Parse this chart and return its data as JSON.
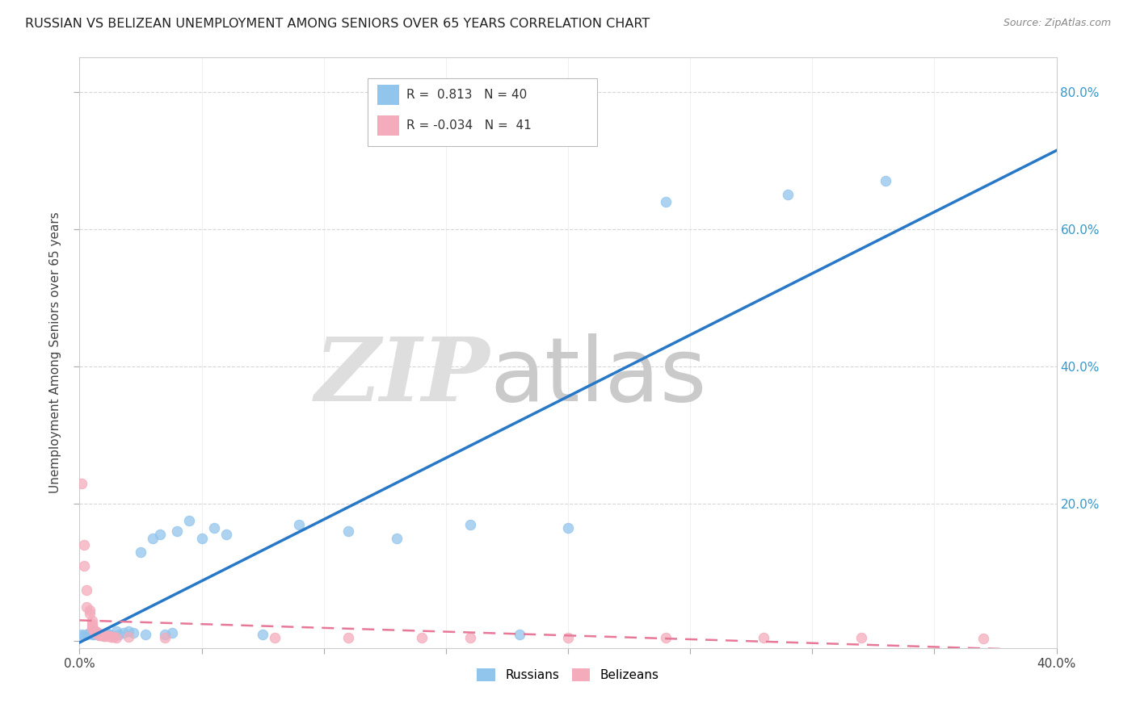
{
  "title": "RUSSIAN VS BELIZEAN UNEMPLOYMENT AMONG SENIORS OVER 65 YEARS CORRELATION CHART",
  "source": "Source: ZipAtlas.com",
  "ylabel": "Unemployment Among Seniors over 65 years",
  "xlim": [
    0.0,
    0.4
  ],
  "ylim": [
    -0.01,
    0.85
  ],
  "yticks": [
    0.0,
    0.2,
    0.4,
    0.6,
    0.8
  ],
  "ytick_labels": [
    "",
    "20.0%",
    "40.0%",
    "60.0%",
    "80.0%"
  ],
  "xticks": [
    0.0,
    0.05,
    0.1,
    0.15,
    0.2,
    0.25,
    0.3,
    0.35,
    0.4
  ],
  "russian_R": "0.813",
  "russian_N": "40",
  "belizean_R": "-0.034",
  "belizean_N": "41",
  "russian_color": "#92C5EC",
  "belizean_color": "#F4ABBB",
  "russian_line_color": "#2878C8",
  "belizean_line_color": "#E87898",
  "russian_x": [
    0.001,
    0.002,
    0.003,
    0.004,
    0.005,
    0.005,
    0.006,
    0.007,
    0.008,
    0.009,
    0.01,
    0.011,
    0.012,
    0.013,
    0.015,
    0.016,
    0.018,
    0.02,
    0.022,
    0.025,
    0.027,
    0.03,
    0.033,
    0.035,
    0.038,
    0.04,
    0.045,
    0.05,
    0.055,
    0.06,
    0.075,
    0.09,
    0.11,
    0.13,
    0.16,
    0.18,
    0.2,
    0.24,
    0.29,
    0.33
  ],
  "russian_y": [
    0.01,
    0.008,
    0.01,
    0.012,
    0.01,
    0.015,
    0.01,
    0.012,
    0.01,
    0.008,
    0.01,
    0.012,
    0.01,
    0.008,
    0.015,
    0.01,
    0.012,
    0.015,
    0.012,
    0.13,
    0.01,
    0.15,
    0.155,
    0.01,
    0.012,
    0.16,
    0.175,
    0.15,
    0.165,
    0.155,
    0.01,
    0.17,
    0.16,
    0.15,
    0.17,
    0.01,
    0.165,
    0.64,
    0.65,
    0.67
  ],
  "belizean_x": [
    0.001,
    0.002,
    0.002,
    0.003,
    0.003,
    0.004,
    0.004,
    0.005,
    0.005,
    0.005,
    0.005,
    0.006,
    0.006,
    0.007,
    0.007,
    0.008,
    0.008,
    0.008,
    0.009,
    0.009,
    0.01,
    0.01,
    0.01,
    0.011,
    0.012,
    0.012,
    0.013,
    0.013,
    0.014,
    0.015,
    0.02,
    0.035,
    0.08,
    0.11,
    0.14,
    0.16,
    0.2,
    0.24,
    0.28,
    0.32,
    0.37
  ],
  "belizean_y": [
    0.23,
    0.14,
    0.11,
    0.075,
    0.05,
    0.045,
    0.04,
    0.03,
    0.025,
    0.022,
    0.018,
    0.016,
    0.013,
    0.013,
    0.011,
    0.011,
    0.009,
    0.009,
    0.008,
    0.008,
    0.008,
    0.007,
    0.007,
    0.007,
    0.007,
    0.007,
    0.006,
    0.006,
    0.006,
    0.005,
    0.006,
    0.005,
    0.005,
    0.005,
    0.005,
    0.005,
    0.005,
    0.005,
    0.005,
    0.005,
    0.004
  ]
}
